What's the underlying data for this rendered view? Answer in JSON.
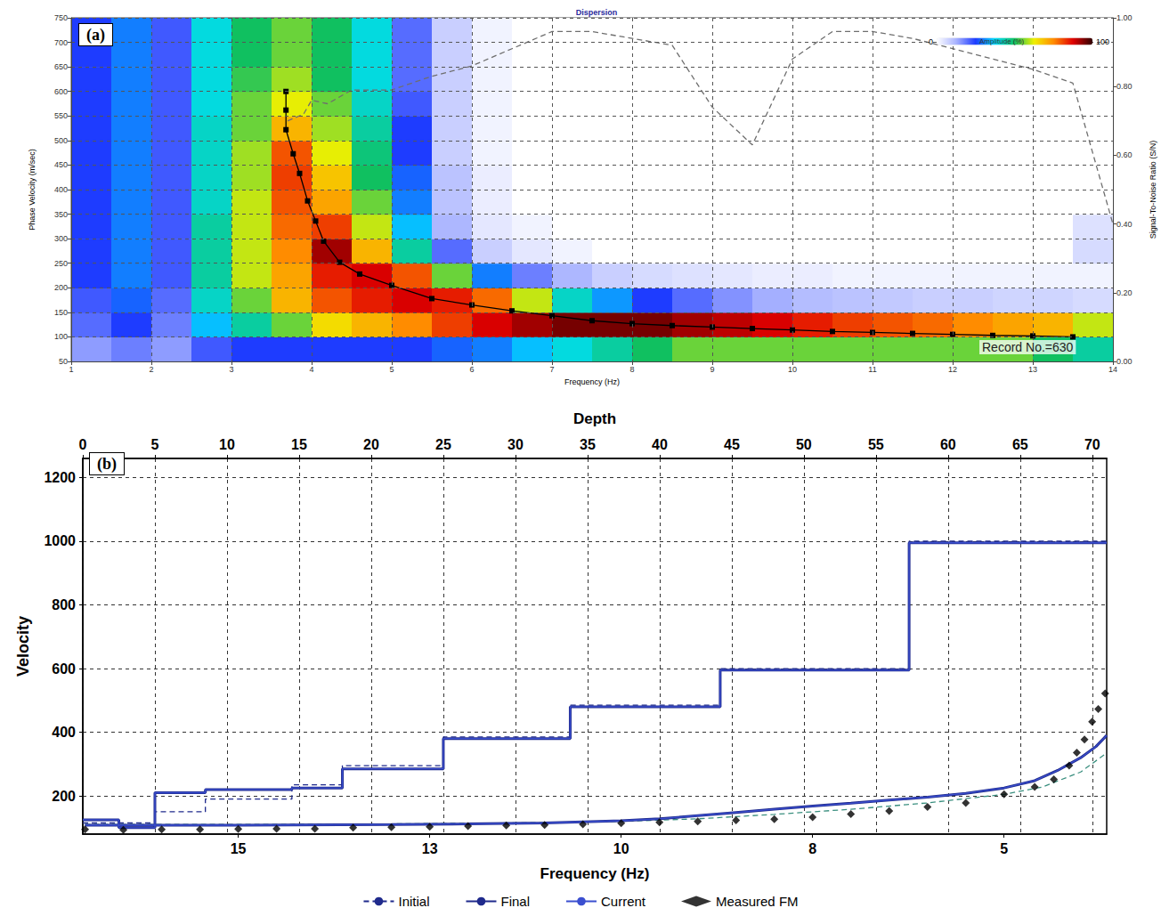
{
  "chart_data": [
    {
      "type": "line",
      "title": "Dispersion",
      "panel_label": "(a)",
      "xlabel": "Frequency (Hz)",
      "ylabel": "Phase Velocity (m/sec)",
      "y2label": "Signal-To-Noise Ratio (S/N)",
      "xlim": [
        1,
        14
      ],
      "xticks": [
        1,
        2,
        3,
        4,
        5,
        6,
        7,
        8,
        9,
        10,
        11,
        12,
        13,
        14
      ],
      "ylim": [
        50,
        750
      ],
      "yticks": [
        50,
        100,
        150,
        200,
        250,
        300,
        350,
        400,
        450,
        500,
        550,
        600,
        650,
        700,
        750
      ],
      "y2lim": [
        0,
        1
      ],
      "y2ticks": [
        {
          "value": 0,
          "label": "0.00"
        },
        {
          "value": 0.2,
          "label": "0.20"
        },
        {
          "value": 0.4,
          "label": "0.40"
        },
        {
          "value": 0.6,
          "label": "0.60"
        },
        {
          "value": 0.8,
          "label": "0.80"
        },
        {
          "value": 1,
          "label": "1.00"
        }
      ],
      "grid": true,
      "annotations": [
        "Record No.=630"
      ],
      "heatmap": {
        "x_edges": [
          1,
          1.5,
          2,
          2.5,
          3,
          3.5,
          4,
          4.5,
          5,
          5.5,
          6,
          6.5,
          7,
          7.5,
          8,
          8.5,
          9,
          9.5,
          10,
          10.5,
          11,
          11.5,
          12,
          12.5,
          13,
          13.5,
          14
        ],
        "y_edges": [
          50,
          100,
          150,
          200,
          250,
          300,
          350,
          400,
          450,
          500,
          550,
          600,
          650,
          700,
          750
        ],
        "values": [
          [
            15,
            18,
            15,
            22,
            25,
            25,
            25,
            25,
            25,
            28,
            30,
            35,
            40,
            45,
            50,
            55,
            55,
            55,
            55,
            55,
            55,
            55,
            55,
            55,
            50,
            45
          ],
          [
            20,
            25,
            18,
            35,
            45,
            55,
            65,
            70,
            75,
            82,
            88,
            92,
            95,
            95,
            95,
            92,
            90,
            88,
            85,
            82,
            80,
            78,
            75,
            72,
            70,
            60
          ],
          [
            22,
            28,
            20,
            42,
            55,
            70,
            80,
            85,
            88,
            85,
            78,
            60,
            42,
            32,
            25,
            20,
            16,
            13,
            11,
            10,
            9,
            8,
            8,
            7,
            7,
            6
          ],
          [
            25,
            30,
            22,
            45,
            60,
            72,
            85,
            88,
            80,
            55,
            30,
            18,
            12,
            8,
            6,
            5,
            4,
            3,
            3,
            2,
            2,
            2,
            2,
            2,
            2,
            2
          ],
          [
            25,
            30,
            22,
            45,
            60,
            75,
            92,
            70,
            45,
            20,
            8,
            4,
            2,
            0,
            0,
            0,
            0,
            0,
            0,
            0,
            0,
            0,
            0,
            0,
            0,
            6
          ],
          [
            25,
            30,
            22,
            45,
            60,
            78,
            82,
            60,
            35,
            12,
            4,
            2,
            0,
            0,
            0,
            0,
            0,
            0,
            0,
            0,
            0,
            0,
            0,
            0,
            0,
            5
          ],
          [
            25,
            30,
            22,
            42,
            60,
            80,
            72,
            55,
            30,
            10,
            3,
            0,
            0,
            0,
            0,
            0,
            0,
            0,
            0,
            0,
            0,
            0,
            0,
            0,
            0,
            0
          ],
          [
            25,
            30,
            22,
            42,
            58,
            82,
            68,
            50,
            28,
            10,
            3,
            0,
            0,
            0,
            0,
            0,
            0,
            0,
            0,
            0,
            0,
            0,
            0,
            0,
            0,
            0
          ],
          [
            25,
            30,
            22,
            42,
            58,
            80,
            62,
            48,
            25,
            8,
            2,
            0,
            0,
            0,
            0,
            0,
            0,
            0,
            0,
            0,
            0,
            0,
            0,
            0,
            0,
            0
          ],
          [
            25,
            30,
            22,
            42,
            55,
            70,
            58,
            45,
            25,
            8,
            2,
            0,
            0,
            0,
            0,
            0,
            0,
            0,
            0,
            0,
            0,
            0,
            0,
            0,
            0,
            0
          ],
          [
            25,
            30,
            22,
            40,
            55,
            62,
            55,
            42,
            22,
            8,
            2,
            0,
            0,
            0,
            0,
            0,
            0,
            0,
            0,
            0,
            0,
            0,
            0,
            0,
            0,
            0
          ],
          [
            25,
            30,
            22,
            40,
            52,
            58,
            50,
            40,
            20,
            8,
            2,
            0,
            0,
            0,
            0,
            0,
            0,
            0,
            0,
            0,
            0,
            0,
            0,
            0,
            0,
            0
          ],
          [
            25,
            30,
            22,
            40,
            50,
            55,
            50,
            40,
            20,
            8,
            2,
            0,
            0,
            0,
            0,
            0,
            0,
            0,
            0,
            0,
            0,
            0,
            0,
            0,
            0,
            0
          ],
          [
            25,
            30,
            22,
            40,
            50,
            55,
            50,
            40,
            20,
            8,
            2,
            0,
            0,
            0,
            0,
            0,
            0,
            0,
            0,
            0,
            0,
            0,
            0,
            0,
            0,
            0
          ]
        ],
        "colorbar": {
          "label": "Amplitude (%)",
          "range": [
            0,
            100
          ],
          "ticks": [
            0,
            100
          ]
        }
      },
      "series": [
        {
          "type": "line",
          "marker": "square",
          "line_style": "solid",
          "color": "#000000",
          "x": [
            3.68,
            3.68,
            3.68,
            3.77,
            3.85,
            3.95,
            4.05,
            4.15,
            4.35,
            4.6,
            5,
            5.5,
            6,
            6.5,
            7,
            7.5,
            8,
            8.5,
            9,
            9.5,
            10,
            10.5,
            11,
            11.5,
            12,
            12.5,
            13,
            13.5
          ],
          "values": [
            600,
            562,
            522,
            473,
            433,
            377,
            336,
            295,
            252,
            228,
            205,
            178,
            165,
            153,
            143,
            133,
            127,
            123,
            120,
            117,
            114,
            111,
            109,
            107,
            105,
            103,
            102,
            100
          ]
        },
        {
          "type": "line",
          "marker": "none",
          "line_style": "dashed",
          "color": "#6e6e6e",
          "axis": "y2",
          "x": [
            3.7,
            3.9,
            4.0,
            4.2,
            4.5,
            5,
            5.5,
            6,
            6.5,
            7,
            7.5,
            8,
            8.5,
            9,
            9.5,
            10,
            10.5,
            11,
            11.5,
            12,
            12.5,
            13,
            13.5,
            14
          ],
          "values": [
            0.7,
            0.72,
            0.76,
            0.75,
            0.79,
            0.79,
            0.83,
            0.86,
            0.91,
            0.96,
            0.96,
            0.94,
            0.92,
            0.74,
            0.63,
            0.88,
            0.96,
            0.96,
            0.94,
            0.91,
            0.88,
            0.85,
            0.81,
            0.4
          ]
        }
      ]
    },
    {
      "type": "line",
      "panel_label": "(b)",
      "xlabel": "Frequency (Hz)",
      "x2label": "Depth",
      "ylabel": "Velocity",
      "xlim": [
        17.03,
        3.66
      ],
      "xticks": [
        15,
        {
          "value": 12.5,
          "label": "13"
        },
        10,
        {
          "value": 7.5,
          "label": "8"
        },
        5
      ],
      "x2lim": [
        0,
        71
      ],
      "x2ticks": [
        0,
        5,
        10,
        15,
        20,
        25,
        30,
        35,
        40,
        45,
        50,
        55,
        60,
        65,
        70
      ],
      "ylim": [
        80,
        1260
      ],
      "yticks": [
        200,
        400,
        600,
        800,
        1000,
        1200
      ],
      "grid": true,
      "legend": "bottom",
      "series": [
        {
          "name": "Initial",
          "type": "step",
          "axis": "x2",
          "marker": "none",
          "line_style": "dashed",
          "color": "#1f2a8c",
          "x": [
            0,
            5,
            8.5,
            14.5,
            18,
            25,
            33.8,
            44.2,
            57.3
          ],
          "values": [
            115,
            150,
            190,
            235,
            295,
            385,
            485,
            600,
            1000
          ]
        },
        {
          "name": "Initial",
          "type": "line",
          "marker": "none",
          "line_style": "dashed",
          "color": "#3a8f7f",
          "x": [
            17,
            15,
            13,
            11,
            10,
            9,
            8,
            7,
            6,
            5,
            4.5,
            4,
            3.66
          ],
          "values": [
            110,
            110,
            112,
            116,
            120,
            128,
            142,
            158,
            178,
            205,
            228,
            275,
            335
          ]
        },
        {
          "name": "Final",
          "type": "step",
          "axis": "x2",
          "marker": "none",
          "line_style": "bold",
          "color": "#1f2a8c",
          "x": [
            0,
            2.5,
            5,
            8.5,
            14.5,
            18,
            25,
            33.8,
            44.2,
            57.3
          ],
          "values": [
            125,
            100,
            210,
            220,
            225,
            285,
            380,
            480,
            595,
            995
          ]
        },
        {
          "name": "Final",
          "type": "line",
          "marker": "none",
          "line_style": "bold",
          "color": "#1f2a8c",
          "x": [
            17,
            15,
            13,
            12,
            11,
            10,
            9.5,
            9,
            8.5,
            8,
            7.5,
            7,
            6.5,
            6,
            5.5,
            5,
            4.6,
            4.3,
            4,
            3.8,
            3.66
          ],
          "values": [
            108,
            108,
            110,
            112,
            115,
            122,
            128,
            138,
            148,
            158,
            168,
            177,
            187,
            196,
            208,
            225,
            248,
            280,
            320,
            355,
            390
          ]
        },
        {
          "name": "Current",
          "type": "step",
          "axis": "x2",
          "marker": "none",
          "line_style": "solid",
          "color": "#3b4fd0",
          "x": [
            0,
            2.5,
            5,
            8.5,
            14.5,
            18,
            25,
            33.8,
            44.2,
            57.3
          ],
          "values": [
            125,
            100,
            210,
            220,
            225,
            285,
            380,
            480,
            595,
            995
          ]
        },
        {
          "name": "Current",
          "type": "line",
          "marker": "none",
          "line_style": "solid",
          "color": "#3b4fd0",
          "x": [
            17,
            15,
            13,
            12,
            11,
            10,
            9.5,
            9,
            8.5,
            8,
            7.5,
            7,
            6.5,
            6,
            5.5,
            5,
            4.6,
            4.3,
            4,
            3.8,
            3.66
          ],
          "values": [
            108,
            108,
            110,
            112,
            115,
            122,
            128,
            138,
            148,
            158,
            168,
            177,
            187,
            196,
            208,
            225,
            248,
            280,
            320,
            355,
            390
          ]
        },
        {
          "name": "Measured FM",
          "type": "scatter",
          "marker": "diamond",
          "color": "#000000",
          "x": [
            17,
            16.5,
            16,
            15.5,
            15,
            14.5,
            14,
            13.5,
            13,
            12.5,
            12,
            11.5,
            11,
            10.5,
            10,
            9.5,
            9,
            8.5,
            8,
            7.5,
            7,
            6.5,
            6,
            5.5,
            5,
            4.6,
            4.35,
            4.15,
            4.05,
            3.95,
            3.85,
            3.77,
            3.68
          ],
          "values": [
            95,
            93,
            95,
            95,
            96,
            97,
            97,
            100,
            102,
            103,
            105,
            107,
            109,
            111,
            114,
            117,
            120,
            123,
            127,
            133,
            143,
            153,
            165,
            178,
            205,
            228,
            252,
            295,
            336,
            377,
            433,
            473,
            522
          ]
        }
      ]
    }
  ]
}
